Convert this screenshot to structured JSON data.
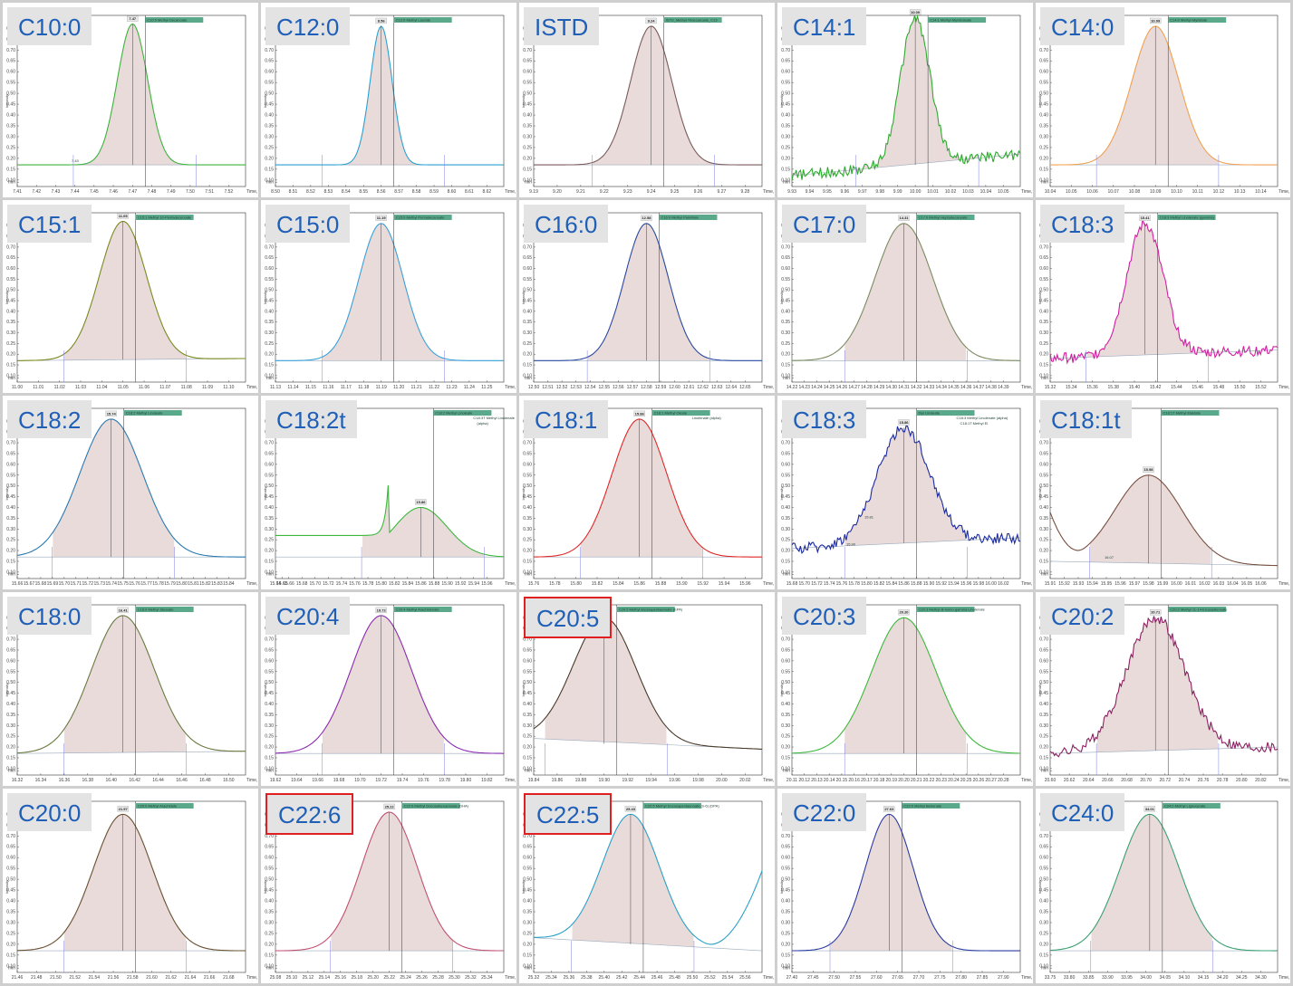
{
  "page": {
    "columns": 5,
    "rows": 5
  },
  "colors": {
    "background": "#ffffff",
    "label_text": "#1f5fb8",
    "label_bg": "#e3e3e3",
    "highlight": "#e02020",
    "fill": "#e6d5d5",
    "tag": "#5aa98a"
  },
  "axis_common": {
    "ylabel": "Intensity",
    "x_suffix": "Time, min",
    "yticks": [
      "0.80",
      "0.75",
      "0.70",
      "0.65",
      "0.60",
      "0.55",
      "0.50",
      "0.45",
      "0.40",
      "0.35",
      "0.30",
      "0.25",
      "0.20",
      "0.15",
      "0.10",
      "min"
    ]
  },
  "chart_data": [
    {
      "type": "line",
      "label": "C10:0",
      "highlight": false,
      "apex": "7.47",
      "compound": "C10:0 Methyl Decanoate",
      "color": "#3cb33c",
      "xticks": [
        "7.41",
        "7.42",
        "7.43",
        "7.44",
        "7.45",
        "7.46",
        "7.47",
        "7.48",
        "7.49",
        "7.50",
        "7.51",
        "7.52"
      ],
      "x_suffix": "Time, min",
      "peak": 7.47,
      "width": 0.008,
      "base": [
        0.17,
        0.17
      ],
      "height": 0.82,
      "extra": "7.43"
    },
    {
      "type": "line",
      "label": "C12:0",
      "highlight": false,
      "apex": "8.56",
      "compound": "C12:0 Methyl Laurate",
      "color": "#2aa0d0",
      "xticks": [
        "8.50",
        "8.51",
        "8.52",
        "8.53",
        "8.54",
        "8.55",
        "8.56",
        "8.57",
        "8.58",
        "8.59",
        "8.60",
        "8.61",
        "8.62"
      ],
      "x_suffix": "Time, min",
      "peak": 8.56,
      "width": 0.006,
      "base": [
        0.17,
        0.17
      ],
      "height": 0.81
    },
    {
      "type": "line",
      "label": "ISTD",
      "highlight": false,
      "apex": "9.24",
      "compound": "ISTD_Methyl Tridecanoate_C13",
      "color": "#7a5a5a",
      "xticks": [
        "9.19",
        "9.20",
        "9.21",
        "9.22",
        "9.23",
        "9.24",
        "9.25",
        "9.26",
        "9.27",
        "9.28"
      ],
      "x_suffix": "Time, min",
      "peak": 9.24,
      "width": 0.01,
      "base": [
        0.17,
        0.17
      ],
      "height": 0.81
    },
    {
      "type": "line",
      "label": "C14:1",
      "highlight": false,
      "apex": "10.00",
      "compound": "C14:1 Methyl Myristoleate",
      "color": "#2eaa2e",
      "xticks": [
        "9.93",
        "9.94",
        "9.95",
        "9.96",
        "9.97",
        "9.98",
        "9.99",
        "10.00",
        "10.01",
        "10.02",
        "10.03",
        "10.04",
        "10.05"
      ],
      "x_suffix": "Time, min",
      "peak": 10.0,
      "width": 0.008,
      "base": [
        0.12,
        0.22
      ],
      "height": 0.85,
      "noisy": true
    },
    {
      "type": "line",
      "label": "C14:0",
      "highlight": false,
      "apex": "10.09",
      "compound": "C14:0 Methyl Myristate",
      "color": "#f0a050",
      "xticks": [
        "10.04",
        "10.05",
        "10.06",
        "10.07",
        "10.08",
        "10.09",
        "10.10",
        "10.11",
        "10.12",
        "10.13",
        "10.14"
      ],
      "x_suffix": "Time, min",
      "peak": 10.09,
      "width": 0.012,
      "base": [
        0.17,
        0.17
      ],
      "height": 0.81
    },
    {
      "type": "line",
      "label": "C15:1",
      "highlight": false,
      "apex": "11.05",
      "compound": "C15:1 Methyl 10-Pentadecenoate",
      "color": "#7a8a20",
      "xticks": [
        "11.00",
        "11.01",
        "11.02",
        "11.03",
        "11.04",
        "11.05",
        "11.06",
        "11.07",
        "11.08",
        "11.09",
        "11.10"
      ],
      "x_suffix": "Time, min",
      "peak": 11.05,
      "width": 0.012,
      "base": [
        0.17,
        0.18
      ],
      "height": 0.82
    },
    {
      "type": "line",
      "label": "C15:0",
      "highlight": false,
      "apex": "11.19",
      "compound": "C15:0 Methyl Pentadecanoate",
      "color": "#3aa0d8",
      "xticks": [
        "11.13",
        "11.14",
        "11.15",
        "11.16",
        "11.17",
        "11.18",
        "11.19",
        "11.20",
        "11.21",
        "11.22",
        "11.23",
        "11.24",
        "11.25"
      ],
      "x_suffix": "Time, min",
      "peak": 11.19,
      "width": 0.012,
      "base": [
        0.17,
        0.17
      ],
      "height": 0.81
    },
    {
      "type": "line",
      "label": "C16:0",
      "highlight": false,
      "apex": "12.58",
      "compound": "C16:0 Methyl Palmitate",
      "color": "#2a4aa0",
      "xticks": [
        "12.50",
        "12.51",
        "12.52",
        "12.53",
        "12.54",
        "12.55",
        "12.56",
        "12.57",
        "12.58",
        "12.59",
        "12.60",
        "12.61",
        "12.62",
        "12.63",
        "12.64",
        "12.65"
      ],
      "x_suffix": "Time, min",
      "peak": 12.58,
      "width": 0.013,
      "base": [
        0.17,
        0.17
      ],
      "height": 0.81
    },
    {
      "type": "line",
      "label": "C17:0",
      "highlight": false,
      "apex": "14.31",
      "compound": "C17:0 Methyl Heptadecanoate",
      "color": "#7a8a60",
      "xticks": [
        "14.22",
        "14.23",
        "14.24",
        "14.25",
        "14.26",
        "14.27",
        "14.28",
        "14.29",
        "14.30",
        "14.31",
        "14.32",
        "14.33",
        "14.34",
        "14.35",
        "14.36",
        "14.37",
        "14.38",
        "14.39"
      ],
      "x_suffix": "Time, min",
      "peak": 14.31,
      "width": 0.018,
      "base": [
        0.17,
        0.17
      ],
      "height": 0.81
    },
    {
      "type": "line",
      "label": "C18:3",
      "highlight": false,
      "apex": "15.41",
      "compound": "C18:3 Methyl Linolenate (gamma)",
      "color": "#d020a0",
      "xticks": [
        "15.32",
        "15.34",
        "15.36",
        "15.38",
        "15.40",
        "15.42",
        "15.44",
        "15.46",
        "15.48",
        "15.50",
        "15.52"
      ],
      "x_suffix": "Time, min",
      "peak": 15.41,
      "width": 0.012,
      "base": [
        0.18,
        0.22
      ],
      "height": 0.81,
      "noisy": true
    },
    {
      "type": "line",
      "label": "C18:2",
      "highlight": false,
      "apex": "15.74",
      "compound": "C18:2 Methyl Linoleate",
      "color": "#2a7ab0",
      "xticks": [
        "15.66",
        "15.67",
        "15.68",
        "15.69",
        "15.70",
        "15.71",
        "15.72",
        "15.73",
        "15.74",
        "15.75",
        "15.76",
        "15.77",
        "15.78",
        "15.79",
        "15.80",
        "15.81",
        "15.82",
        "15.83",
        "15.84"
      ],
      "x_suffix": "Time, min",
      "peak": 15.74,
      "width": 0.02,
      "base": [
        0.17,
        0.17
      ],
      "height": 0.81
    },
    {
      "type": "line",
      "label": "C18:2t",
      "highlight": false,
      "apex": "15.86",
      "compound": "C18:2 Methyl Linoleate",
      "compound2": "C18:3T Methyl Linolenate",
      "compound3": "(alpha)",
      "color": "#3ab83a",
      "xticks": [
        "15.64",
        "15.65",
        "15.66",
        "15.68",
        "15.70",
        "15.72",
        "15.74",
        "15.76",
        "15.78",
        "15.80",
        "15.82",
        "15.84",
        "15.86",
        "15.88",
        "15.90",
        "15.92",
        "15.94",
        "15.96"
      ],
      "x_suffix": "Time, min",
      "peak": 15.86,
      "width": 0.02,
      "base": [
        0.17,
        0.17
      ],
      "height": 0.4,
      "shoulder": true
    },
    {
      "type": "line",
      "label": "C18:1",
      "highlight": false,
      "apex": "15.86",
      "compound": "C18:1 Methyl Oleate",
      "compound2": "Linolenate (alpha)",
      "color": "#e02828",
      "xticks": [
        "15.76",
        "15.78",
        "15.80",
        "15.82",
        "15.84",
        "15.86",
        "15.88",
        "15.90",
        "15.92",
        "15.94",
        "15.96"
      ],
      "x_suffix": "Time, min",
      "peak": 15.86,
      "width": 0.018,
      "base": [
        0.17,
        0.17
      ],
      "height": 0.81
    },
    {
      "type": "line",
      "label": "C18:3",
      "highlight": false,
      "apex": "15.86",
      "compound": "thyl Linoleate",
      "compound2": "C18:3 Methyl Linolenate (alpha)",
      "compound3": "C18:1T Methyl El",
      "color": "#1a2aa0",
      "xticks": [
        "15.68",
        "15.70",
        "15.72",
        "15.74",
        "15.76",
        "15.78",
        "15.80",
        "15.82",
        "15.84",
        "15.86",
        "15.88",
        "15.90",
        "15.92",
        "15.94",
        "15.96",
        "15.98",
        "16.00",
        "16.02"
      ],
      "x_suffix": "Time, min",
      "peak": 15.86,
      "width": 0.02,
      "base": [
        0.21,
        0.26
      ],
      "height": 0.77,
      "noisy": true,
      "extra": "15.90",
      "extra2": "15.81"
    },
    {
      "type": "line",
      "label": "C18:1t",
      "highlight": false,
      "apex": "15.98",
      "compound": "C18:1T Methyl Elaidate",
      "color": "#7a5040",
      "xticks": [
        "15.91",
        "15.92",
        "15.93",
        "15.94",
        "15.95",
        "15.96",
        "15.97",
        "15.98",
        "15.99",
        "16.00",
        "16.01",
        "16.02",
        "16.03",
        "16.04",
        "16.05",
        "16.06"
      ],
      "x_suffix": "Time, min",
      "peak": 15.98,
      "width": 0.02,
      "base": [
        0.15,
        0.13
      ],
      "height": 0.55,
      "dip": true,
      "extra": "16.07"
    },
    {
      "type": "line",
      "label": "C18:0",
      "highlight": false,
      "apex": "16.41",
      "compound": "C18:0 Methyl Stearate",
      "color": "#6a7a40",
      "xticks": [
        "16.32",
        "16.34",
        "16.36",
        "16.38",
        "16.40",
        "16.42",
        "16.44",
        "16.46",
        "16.48",
        "16.50"
      ],
      "x_suffix": "Time, min",
      "peak": 16.41,
      "width": 0.02,
      "base": [
        0.17,
        0.18
      ],
      "height": 0.81
    },
    {
      "type": "line",
      "label": "C20:4",
      "highlight": false,
      "apex": "19.72",
      "compound": "C20:4 Methyl Arachidonate",
      "color": "#8a2ab0",
      "xticks": [
        "19.62",
        "19.64",
        "19.66",
        "19.68",
        "19.70",
        "19.72",
        "19.74",
        "19.76",
        "19.78",
        "19.80",
        "19.82"
      ],
      "x_suffix": "Time, min",
      "peak": 19.72,
      "width": 0.02,
      "base": [
        0.17,
        0.17
      ],
      "height": 0.81
    },
    {
      "type": "line",
      "label": "C20:5",
      "highlight": true,
      "apex": "19.90",
      "compound": "C20:5 Methyl Eicosapentaenoate (EPA)",
      "color": "#4a3a2a",
      "xticks": [
        "19.84",
        "19.86",
        "19.88",
        "19.90",
        "19.92",
        "19.94",
        "19.96",
        "19.98",
        "20.00",
        "20.02"
      ],
      "x_suffix": "Time, min",
      "peak": 19.9,
      "width": 0.02,
      "base": [
        0.24,
        0.19
      ],
      "height": 0.8
    },
    {
      "type": "line",
      "label": "C20:3",
      "highlight": false,
      "apex": "20.20",
      "compound": "C20:3 Methyl di-homo-gamma Linolenate",
      "color": "#3ab83a",
      "xticks": [
        "20.11",
        "20.12",
        "20.13",
        "20.14",
        "20.15",
        "20.16",
        "20.17",
        "20.18",
        "20.19",
        "20.20",
        "20.21",
        "20.22",
        "20.23",
        "20.24",
        "20.25",
        "20.26",
        "20.27",
        "20.28"
      ],
      "x_suffix": "Time, min",
      "peak": 20.2,
      "width": 0.02,
      "base": [
        0.17,
        0.17
      ],
      "height": 0.8
    },
    {
      "type": "line",
      "label": "C20:2",
      "highlight": false,
      "apex": "20.71",
      "compound": "C20:2 Methyl 11-14-Eicosadienoate",
      "color": "#8a2060",
      "xticks": [
        "20.60",
        "20.62",
        "20.64",
        "20.66",
        "20.68",
        "20.70",
        "20.72",
        "20.74",
        "20.76",
        "20.78",
        "20.80",
        "20.82"
      ],
      "x_suffix": "Time, min",
      "peak": 20.71,
      "width": 0.02,
      "base": [
        0.17,
        0.2
      ],
      "height": 0.8,
      "noisy": true
    },
    {
      "type": "line",
      "label": "C20:0",
      "highlight": false,
      "apex": "21.57",
      "compound": "C20:0 Methyl Arachidate",
      "color": "#6a5030",
      "xticks": [
        "21.46",
        "21.48",
        "21.50",
        "21.52",
        "21.54",
        "21.56",
        "21.58",
        "21.60",
        "21.62",
        "21.64",
        "21.66",
        "21.68"
      ],
      "x_suffix": "Time, min",
      "peak": 21.57,
      "width": 0.02,
      "base": [
        0.17,
        0.17
      ],
      "height": 0.8
    },
    {
      "type": "line",
      "label": "C22:6",
      "highlight": true,
      "apex": "25.22",
      "compound": "C22:6 Methyl Docosahexaenoate (DHA)",
      "color": "#c05070",
      "xticks": [
        "25.08",
        "25.10",
        "25.12",
        "25.14",
        "25.16",
        "25.18",
        "25.20",
        "25.22",
        "25.24",
        "25.26",
        "25.28",
        "25.30",
        "25.32",
        "25.34"
      ],
      "x_suffix": "Time, min",
      "peak": 25.22,
      "width": 0.02,
      "base": [
        0.17,
        0.17
      ],
      "height": 0.81
    },
    {
      "type": "line",
      "label": "C22:5",
      "highlight": true,
      "apex": "25.43",
      "compound": "C22:5 Methyl Docosapentaenoate (n-6) (DPA)",
      "color": "#2aa0c8",
      "xticks": [
        "25.32",
        "25.34",
        "25.36",
        "25.38",
        "25.40",
        "25.42",
        "25.44",
        "25.46",
        "25.48",
        "25.50",
        "25.52",
        "25.54",
        "25.56"
      ],
      "x_suffix": "Time, min",
      "peak": 25.43,
      "width": 0.02,
      "base": [
        0.23,
        0.17
      ],
      "height": 0.8,
      "rise": true
    },
    {
      "type": "line",
      "label": "C22:0",
      "highlight": false,
      "apex": "27.63",
      "compound": "C22:0 Methyl Behenate",
      "color": "#2a3aa0",
      "xticks": [
        "27.40",
        "27.45",
        "27.50",
        "27.55",
        "27.60",
        "27.65",
        "27.70",
        "27.75",
        "27.80",
        "27.85",
        "27.90"
      ],
      "x_suffix": "Time, min",
      "peak": 27.63,
      "width": 0.02,
      "base": [
        0.17,
        0.17
      ],
      "height": 0.8
    },
    {
      "type": "line",
      "label": "C24:0",
      "highlight": false,
      "apex": "34.01",
      "compound": "C24:0 Methyl Lignocerate",
      "color": "#3aa070",
      "xticks": [
        "33.75",
        "33.80",
        "33.85",
        "33.90",
        "33.95",
        "34.00",
        "34.05",
        "34.10",
        "34.15",
        "34.20",
        "34.25",
        "34.30"
      ],
      "x_suffix": "Time, min",
      "peak": 34.01,
      "width": 0.025,
      "base": [
        0.17,
        0.17
      ],
      "height": 0.8
    }
  ]
}
